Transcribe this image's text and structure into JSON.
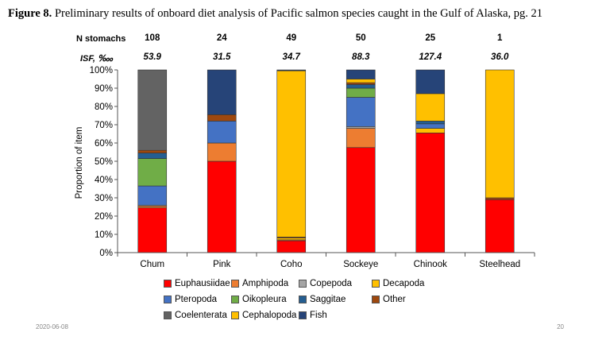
{
  "figure": {
    "label": "Figure 8.",
    "caption": "Preliminary results of onboard diet analysis of Pacific salmon species caught in the Gulf of Alaska, pg. 21"
  },
  "header_rows": {
    "n_label": "N stomachs",
    "isf_label": "ISF, ‱",
    "n_values": [
      "108",
      "24",
      "49",
      "50",
      "25",
      "1"
    ],
    "isf_values": [
      "53.9",
      "31.5",
      "34.7",
      "88.3",
      "127.4",
      "36.0"
    ]
  },
  "footer": {
    "date": "2020-06-08",
    "page": "20"
  },
  "chart_data": {
    "type": "bar",
    "stacked": true,
    "categories": [
      "Chum",
      "Pink",
      "Coho",
      "Sockeye",
      "Chinook",
      "Steelhead"
    ],
    "ylabel": "Proportion of item",
    "ylim": [
      0,
      100
    ],
    "yticks": [
      "0%",
      "10%",
      "20%",
      "30%",
      "40%",
      "50%",
      "60%",
      "70%",
      "80%",
      "90%",
      "100%"
    ],
    "grid": false,
    "legend_position": "bottom",
    "series": [
      {
        "name": "Euphausiidae",
        "color": "#ff0000",
        "values": [
          24.5,
          50,
          6.5,
          57.5,
          65.5,
          29
        ]
      },
      {
        "name": "Amphipoda",
        "color": "#ed7d31",
        "values": [
          1,
          10,
          0.5,
          10.5,
          0,
          0
        ]
      },
      {
        "name": "Copepoda",
        "color": "#a5a5a5",
        "values": [
          0.5,
          0,
          0,
          1,
          0,
          0
        ]
      },
      {
        "name": "Decapoda",
        "color": "#ffc000",
        "values": [
          0,
          0,
          1,
          0,
          2.5,
          0
        ]
      },
      {
        "name": "Pteropoda",
        "color": "#4472c4",
        "values": [
          10.5,
          12,
          0,
          16,
          2.5,
          0
        ]
      },
      {
        "name": "Oikopleura",
        "color": "#70ad47",
        "values": [
          15,
          0,
          0,
          5,
          0,
          0
        ]
      },
      {
        "name": "Saggitae",
        "color": "#255e91",
        "values": [
          3,
          0,
          0,
          2,
          1.5,
          0
        ]
      },
      {
        "name": "Other",
        "color": "#9e480e",
        "values": [
          1.5,
          3.5,
          0.5,
          1,
          0,
          1
        ]
      },
      {
        "name": "Coelenterata",
        "color": "#636363",
        "values": [
          44,
          0,
          0,
          0,
          0,
          0
        ]
      },
      {
        "name": "Cephalopoda",
        "color": "#ffc000",
        "values": [
          0,
          0,
          91,
          2,
          15,
          70
        ]
      },
      {
        "name": "Fish",
        "color": "#264478",
        "values": [
          0,
          24.5,
          0.5,
          5,
          13,
          0
        ]
      }
    ]
  }
}
